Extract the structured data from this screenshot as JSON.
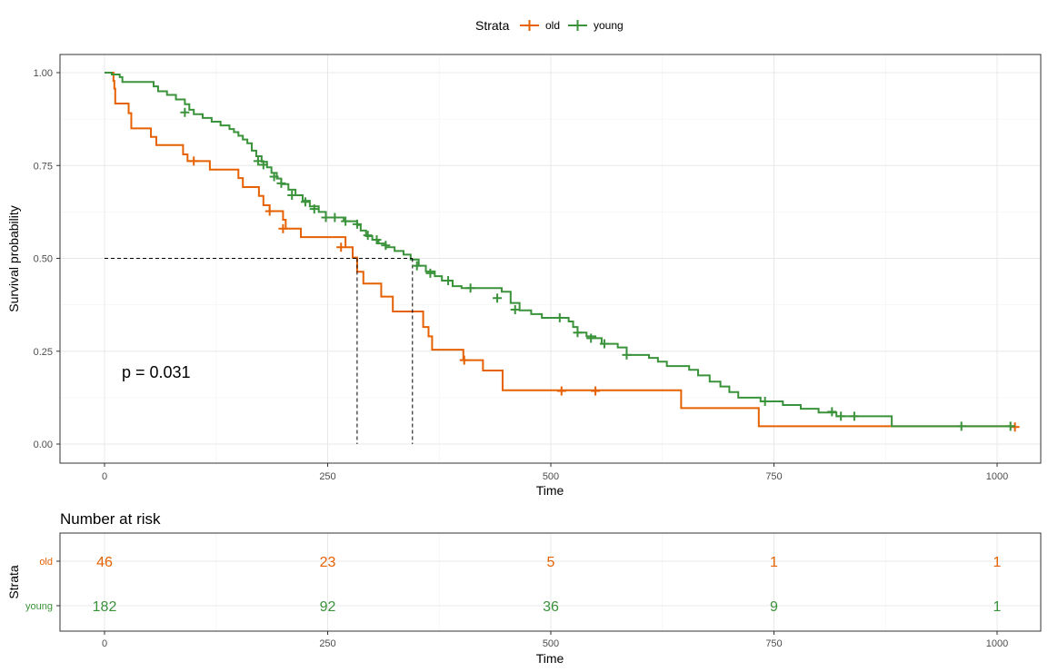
{
  "legend": {
    "title": "Strata",
    "items": [
      {
        "label": "old",
        "color": "#E66101"
      },
      {
        "label": "young",
        "color": "#3A923A"
      }
    ]
  },
  "chart_data": [
    {
      "type": "line",
      "subtype": "kaplan-meier",
      "xlabel": "Time",
      "ylabel": "Survival probability",
      "xlim": [
        0,
        1000
      ],
      "ylim": [
        0,
        1
      ],
      "x_ticks": [
        0,
        250,
        500,
        750,
        1000
      ],
      "x_tick_labels": [
        "0",
        "250",
        "500",
        "750",
        "1000"
      ],
      "y_ticks": [
        0,
        0.25,
        0.5,
        0.75,
        1.0
      ],
      "y_tick_labels": [
        "0.00",
        "0.25",
        "0.50",
        "0.75",
        "1.00"
      ],
      "grid": true,
      "legend_position": "top",
      "annotation": "p = 0.031",
      "median_survival": {
        "old": 283,
        "young": 345,
        "y": 0.5
      },
      "series": [
        {
          "name": "old",
          "color": "#E66101",
          "steps": [
            [
              0,
              1.0
            ],
            [
              10,
              0.978
            ],
            [
              11,
              0.957
            ],
            [
              12,
              0.917
            ],
            [
              27,
              0.891
            ],
            [
              30,
              0.85
            ],
            [
              52,
              0.827
            ],
            [
              58,
              0.805
            ],
            [
              88,
              0.78
            ],
            [
              93,
              0.762
            ],
            [
              118,
              0.739
            ],
            [
              150,
              0.716
            ],
            [
              155,
              0.692
            ],
            [
              173,
              0.668
            ],
            [
              178,
              0.643
            ],
            [
              185,
              0.627
            ],
            [
              200,
              0.604
            ],
            [
              203,
              0.58
            ],
            [
              220,
              0.557
            ],
            [
              270,
              0.53
            ],
            [
              278,
              0.502
            ],
            [
              283,
              0.464
            ],
            [
              290,
              0.432
            ],
            [
              310,
              0.397
            ],
            [
              323,
              0.357
            ],
            [
              350,
              0.357
            ],
            [
              357,
              0.315
            ],
            [
              363,
              0.29
            ],
            [
              367,
              0.254
            ],
            [
              402,
              0.226
            ],
            [
              424,
              0.198
            ],
            [
              446,
              0.145
            ],
            [
              480,
              0.145
            ],
            [
              646,
              0.097
            ],
            [
              733,
              0.048
            ],
            [
              883,
              0.048
            ]
          ],
          "censored": [
            [
              100,
              0.762
            ],
            [
              185,
              0.627
            ],
            [
              200,
              0.58
            ],
            [
              265,
              0.53
            ],
            [
              403,
              0.226
            ],
            [
              512,
              0.143
            ],
            [
              550,
              0.143
            ],
            [
              1020,
              0.046
            ]
          ]
        },
        {
          "name": "young",
          "color": "#3A923A",
          "steps": [
            [
              0,
              1.0
            ],
            [
              8,
              0.995
            ],
            [
              17,
              0.988
            ],
            [
              20,
              0.975
            ],
            [
              55,
              0.963
            ],
            [
              60,
              0.95
            ],
            [
              70,
              0.94
            ],
            [
              80,
              0.928
            ],
            [
              90,
              0.915
            ],
            [
              95,
              0.9
            ],
            [
              100,
              0.888
            ],
            [
              110,
              0.878
            ],
            [
              120,
              0.868
            ],
            [
              130,
              0.858
            ],
            [
              140,
              0.848
            ],
            [
              145,
              0.84
            ],
            [
              150,
              0.83
            ],
            [
              155,
              0.82
            ],
            [
              160,
              0.81
            ],
            [
              165,
              0.79
            ],
            [
              170,
              0.775
            ],
            [
              176,
              0.76
            ],
            [
              182,
              0.745
            ],
            [
              187,
              0.73
            ],
            [
              193,
              0.715
            ],
            [
              198,
              0.7
            ],
            [
              206,
              0.685
            ],
            [
              214,
              0.67
            ],
            [
              222,
              0.655
            ],
            [
              230,
              0.64
            ],
            [
              240,
              0.625
            ],
            [
              248,
              0.61
            ],
            [
              258,
              0.61
            ],
            [
              268,
              0.6
            ],
            [
              283,
              0.59
            ],
            [
              287,
              0.575
            ],
            [
              293,
              0.56
            ],
            [
              300,
              0.55
            ],
            [
              307,
              0.54
            ],
            [
              315,
              0.53
            ],
            [
              325,
              0.52
            ],
            [
              335,
              0.51
            ],
            [
              343,
              0.497
            ],
            [
              352,
              0.48
            ],
            [
              360,
              0.465
            ],
            [
              370,
              0.452
            ],
            [
              378,
              0.44
            ],
            [
              390,
              0.425
            ],
            [
              400,
              0.42
            ],
            [
              445,
              0.41
            ],
            [
              455,
              0.38
            ],
            [
              465,
              0.36
            ],
            [
              478,
              0.35
            ],
            [
              490,
              0.34
            ],
            [
              520,
              0.33
            ],
            [
              525,
              0.315
            ],
            [
              530,
              0.3
            ],
            [
              540,
              0.29
            ],
            [
              550,
              0.285
            ],
            [
              557,
              0.27
            ],
            [
              575,
              0.26
            ],
            [
              585,
              0.24
            ],
            [
              610,
              0.232
            ],
            [
              620,
              0.222
            ],
            [
              630,
              0.21
            ],
            [
              655,
              0.2
            ],
            [
              665,
              0.185
            ],
            [
              678,
              0.168
            ],
            [
              690,
              0.155
            ],
            [
              700,
              0.14
            ],
            [
              710,
              0.125
            ],
            [
              735,
              0.115
            ],
            [
              760,
              0.105
            ],
            [
              780,
              0.095
            ],
            [
              800,
              0.085
            ],
            [
              820,
              0.075
            ],
            [
              860,
              0.075
            ],
            [
              882,
              0.048
            ],
            [
              1020,
              0.048
            ]
          ],
          "censored": [
            [
              90,
              0.893
            ],
            [
              172,
              0.762
            ],
            [
              178,
              0.752
            ],
            [
              190,
              0.72
            ],
            [
              198,
              0.702
            ],
            [
              210,
              0.67
            ],
            [
              225,
              0.652
            ],
            [
              235,
              0.633
            ],
            [
              248,
              0.61
            ],
            [
              258,
              0.61
            ],
            [
              270,
              0.6
            ],
            [
              283,
              0.592
            ],
            [
              295,
              0.562
            ],
            [
              305,
              0.55
            ],
            [
              315,
              0.535
            ],
            [
              350,
              0.48
            ],
            [
              365,
              0.46
            ],
            [
              385,
              0.44
            ],
            [
              410,
              0.42
            ],
            [
              440,
              0.393
            ],
            [
              460,
              0.362
            ],
            [
              510,
              0.34
            ],
            [
              530,
              0.3
            ],
            [
              545,
              0.285
            ],
            [
              560,
              0.27
            ],
            [
              585,
              0.24
            ],
            [
              740,
              0.115
            ],
            [
              815,
              0.087
            ],
            [
              825,
              0.075
            ],
            [
              840,
              0.075
            ],
            [
              960,
              0.048
            ],
            [
              1015,
              0.048
            ]
          ]
        }
      ]
    },
    {
      "type": "table",
      "title": "Number at risk",
      "xlabel": "Time",
      "ylabel": "Strata",
      "x_ticks": [
        0,
        250,
        500,
        750,
        1000
      ],
      "x_tick_labels": [
        "0",
        "250",
        "500",
        "750",
        "1000"
      ],
      "rows": [
        {
          "name": "old",
          "color": "#E66101",
          "values": [
            "46",
            "23",
            "5",
            "1",
            "1"
          ]
        },
        {
          "name": "young",
          "color": "#3A923A",
          "values": [
            "182",
            "92",
            "36",
            "9",
            "1"
          ]
        }
      ]
    }
  ]
}
